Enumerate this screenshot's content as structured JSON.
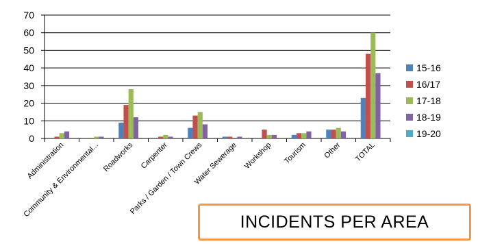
{
  "chart_data": {
    "type": "bar",
    "title": "INCIDENTS PER AREA",
    "categories": [
      "Administration",
      "Community & Environmental...",
      "Roadworks",
      "Carpenter",
      "Parks / Garden / Town Crews",
      "Water Sewerage",
      "Workshop",
      "Tourism",
      "Other",
      "TOTAL"
    ],
    "series": [
      {
        "name": "15-16",
        "color": "#4f81bd",
        "values": [
          0,
          0,
          9,
          0,
          6,
          1,
          0,
          2,
          5,
          23
        ]
      },
      {
        "name": "16/17",
        "color": "#c0504d",
        "values": [
          1,
          0,
          19,
          1,
          13,
          1,
          5,
          3,
          5,
          48
        ]
      },
      {
        "name": "17-18",
        "color": "#9bbb59",
        "values": [
          3,
          1,
          28,
          2,
          15,
          0,
          2,
          3,
          6,
          60
        ]
      },
      {
        "name": "18-19",
        "color": "#8064a2",
        "values": [
          4,
          1,
          12,
          1,
          8,
          1,
          2,
          4,
          4,
          37
        ]
      },
      {
        "name": "19-20",
        "color": "#4bacc6",
        "values": [
          0,
          0,
          0,
          0,
          0,
          0,
          0,
          0,
          0,
          0
        ]
      }
    ],
    "ylim": [
      0,
      70
    ],
    "yticks": [
      0,
      10,
      20,
      30,
      40,
      50,
      60,
      70
    ],
    "grid": true,
    "legend_position": "right"
  }
}
